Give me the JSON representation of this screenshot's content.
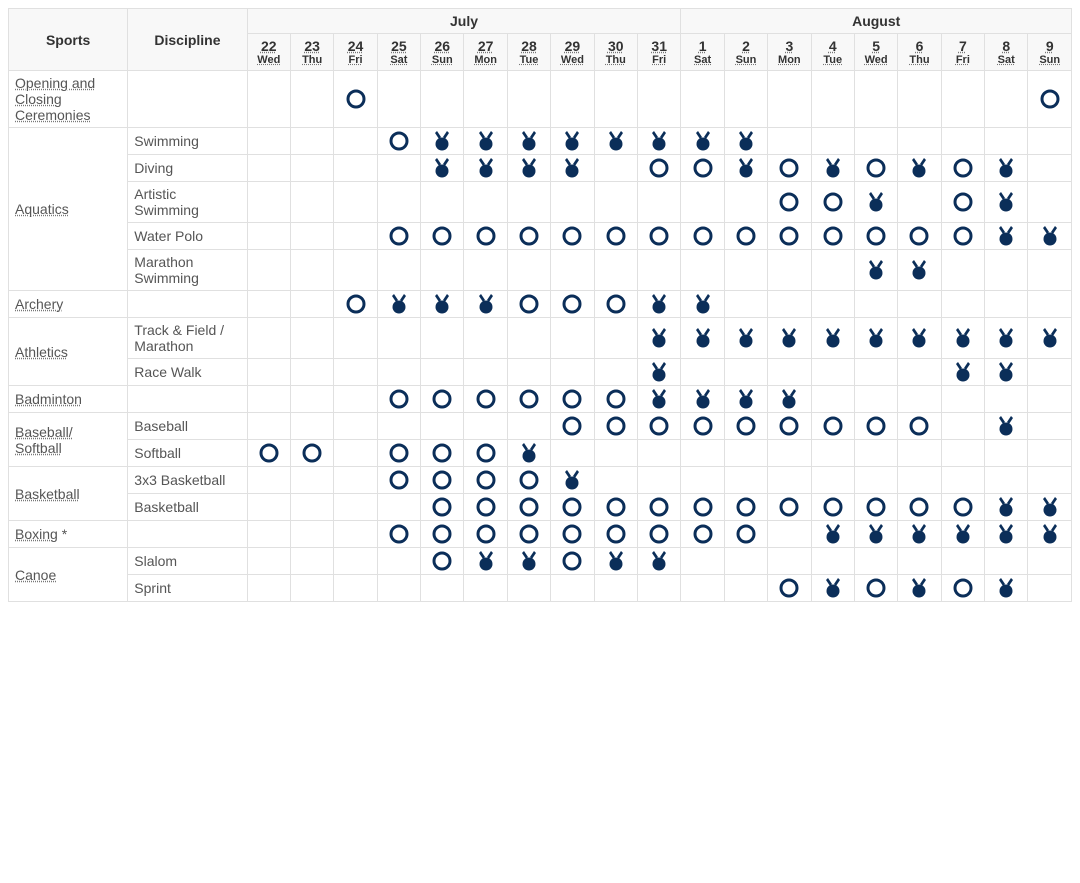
{
  "colors": {
    "filled": "#0b2e59",
    "border": "#e0e0e0",
    "header_bg": "#f8f8f8",
    "text": "#333333",
    "link": "#555555"
  },
  "icon_sizes": {
    "circle_r": 8,
    "stroke": 3,
    "medal_w": 22,
    "medal_h": 22
  },
  "headers": {
    "sports": "Sports",
    "discipline": "Discipline",
    "months": [
      {
        "label": "July",
        "span": 10
      },
      {
        "label": "August",
        "span": 9
      }
    ],
    "dates": [
      {
        "num": "22",
        "dow": "Wed"
      },
      {
        "num": "23",
        "dow": "Thu"
      },
      {
        "num": "24",
        "dow": "Fri"
      },
      {
        "num": "25",
        "dow": "Sat"
      },
      {
        "num": "26",
        "dow": "Sun"
      },
      {
        "num": "27",
        "dow": "Mon"
      },
      {
        "num": "28",
        "dow": "Tue"
      },
      {
        "num": "29",
        "dow": "Wed"
      },
      {
        "num": "30",
        "dow": "Thu"
      },
      {
        "num": "31",
        "dow": "Fri"
      },
      {
        "num": "1",
        "dow": "Sat"
      },
      {
        "num": "2",
        "dow": "Sun"
      },
      {
        "num": "3",
        "dow": "Mon"
      },
      {
        "num": "4",
        "dow": "Tue"
      },
      {
        "num": "5",
        "dow": "Wed"
      },
      {
        "num": "6",
        "dow": "Thu"
      },
      {
        "num": "7",
        "dow": "Fri"
      },
      {
        "num": "8",
        "dow": "Sat"
      },
      {
        "num": "9",
        "dow": "Sun"
      }
    ]
  },
  "sports": [
    {
      "name": "Opening and Closing Ceremonies",
      "link": true,
      "disciplines": [
        {
          "name": "",
          "cells": [
            "",
            "",
            "O",
            "",
            "",
            "",
            "",
            "",
            "",
            "",
            "",
            "",
            "",
            "",
            "",
            "",
            "",
            "",
            "O"
          ]
        }
      ]
    },
    {
      "name": "Aquatics",
      "link": true,
      "disciplines": [
        {
          "name": "Swimming",
          "cells": [
            "",
            "",
            "",
            "O",
            "M",
            "M",
            "M",
            "M",
            "M",
            "M",
            "M",
            "M",
            "",
            "",
            "",
            "",
            "",
            "",
            ""
          ]
        },
        {
          "name": "Diving",
          "cells": [
            "",
            "",
            "",
            "",
            "M",
            "M",
            "M",
            "M",
            "",
            "O",
            "O",
            "M",
            "O",
            "M",
            "O",
            "M",
            "O",
            "M",
            ""
          ]
        },
        {
          "name": "Artistic Swimming",
          "cells": [
            "",
            "",
            "",
            "",
            "",
            "",
            "",
            "",
            "",
            "",
            "",
            "",
            "O",
            "O",
            "M",
            "",
            "O",
            "M",
            ""
          ]
        },
        {
          "name": "Water Polo",
          "cells": [
            "",
            "",
            "",
            "O",
            "O",
            "O",
            "O",
            "O",
            "O",
            "O",
            "O",
            "O",
            "O",
            "O",
            "O",
            "O",
            "O",
            "M",
            "M"
          ]
        },
        {
          "name": "Marathon Swimming",
          "cells": [
            "",
            "",
            "",
            "",
            "",
            "",
            "",
            "",
            "",
            "",
            "",
            "",
            "",
            "",
            "M",
            "M",
            "",
            "",
            ""
          ]
        }
      ]
    },
    {
      "name": "Archery",
      "link": true,
      "disciplines": [
        {
          "name": "",
          "cells": [
            "",
            "",
            "O",
            "M",
            "M",
            "M",
            "O",
            "O",
            "O",
            "M",
            "M",
            "",
            "",
            "",
            "",
            "",
            "",
            "",
            ""
          ]
        }
      ]
    },
    {
      "name": "Athletics",
      "link": true,
      "disciplines": [
        {
          "name": "Track & Field / Marathon",
          "cells": [
            "",
            "",
            "",
            "",
            "",
            "",
            "",
            "",
            "",
            "M",
            "M",
            "M",
            "M",
            "M",
            "M",
            "M",
            "M",
            "M",
            "M"
          ]
        },
        {
          "name": "Race Walk",
          "cells": [
            "",
            "",
            "",
            "",
            "",
            "",
            "",
            "",
            "",
            "M",
            "",
            "",
            "",
            "",
            "",
            "",
            "M",
            "M",
            ""
          ]
        }
      ]
    },
    {
      "name": "Badminton",
      "link": true,
      "disciplines": [
        {
          "name": "",
          "cells": [
            "",
            "",
            "",
            "O",
            "O",
            "O",
            "O",
            "O",
            "O",
            "M",
            "M",
            "M",
            "M",
            "",
            "",
            "",
            "",
            "",
            ""
          ]
        }
      ]
    },
    {
      "name": "Baseball/ Softball",
      "link": true,
      "disciplines": [
        {
          "name": "Baseball",
          "cells": [
            "",
            "",
            "",
            "",
            "",
            "",
            "",
            "O",
            "O",
            "O",
            "O",
            "O",
            "O",
            "O",
            "O",
            "O",
            "",
            "M",
            ""
          ]
        },
        {
          "name": "Softball",
          "cells": [
            "O",
            "O",
            "",
            "O",
            "O",
            "O",
            "M",
            "",
            "",
            "",
            "",
            "",
            "",
            "",
            "",
            "",
            "",
            "",
            ""
          ]
        }
      ]
    },
    {
      "name": "Basketball",
      "link": true,
      "disciplines": [
        {
          "name": "3x3 Basketball",
          "cells": [
            "",
            "",
            "",
            "O",
            "O",
            "O",
            "O",
            "M",
            "",
            "",
            "",
            "",
            "",
            "",
            "",
            "",
            "",
            "",
            ""
          ]
        },
        {
          "name": "Basketball",
          "cells": [
            "",
            "",
            "",
            "",
            "O",
            "O",
            "O",
            "O",
            "O",
            "O",
            "O",
            "O",
            "O",
            "O",
            "O",
            "O",
            "O",
            "M",
            "M"
          ]
        }
      ]
    },
    {
      "name": "Boxing",
      "link": true,
      "suffix": " *",
      "disciplines": [
        {
          "name": "",
          "cells": [
            "",
            "",
            "",
            "O",
            "O",
            "O",
            "O",
            "O",
            "O",
            "O",
            "O",
            "O",
            "",
            "M",
            "M",
            "M",
            "M",
            "M",
            "M"
          ]
        }
      ]
    },
    {
      "name": "Canoe",
      "link": true,
      "disciplines": [
        {
          "name": "Slalom",
          "cells": [
            "",
            "",
            "",
            "",
            "O",
            "M",
            "M",
            "O",
            "M",
            "M",
            "",
            "",
            "",
            "",
            "",
            "",
            "",
            "",
            ""
          ]
        },
        {
          "name": "Sprint",
          "cells": [
            "",
            "",
            "",
            "",
            "",
            "",
            "",
            "",
            "",
            "",
            "",
            "",
            "O",
            "M",
            "O",
            "M",
            "O",
            "M",
            ""
          ]
        }
      ]
    }
  ]
}
